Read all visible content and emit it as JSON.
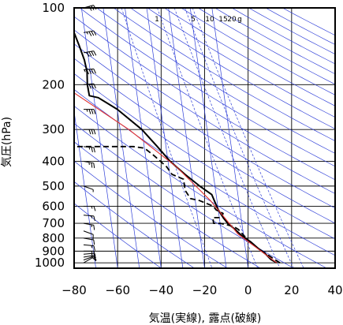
{
  "chart_data": {
    "type": "line",
    "title": "",
    "xlabel": "気温(実線), 露点(破線)",
    "ylabel": "気圧(hPa)",
    "xlim": [
      -80,
      40
    ],
    "ylim": [
      1050,
      100
    ],
    "y_scale": "log",
    "grid": true,
    "x_ticks": [
      -80,
      -60,
      -40,
      -20,
      0,
      20,
      40
    ],
    "x_tick_labels": [
      "−80",
      "−60",
      "−40",
      "−20",
      "0",
      "20",
      "40"
    ],
    "y_ticks": [
      100,
      200,
      300,
      400,
      500,
      600,
      700,
      800,
      900,
      1000
    ],
    "y_tick_labels": [
      "100",
      "200",
      "300",
      "400",
      "500",
      "600",
      "700",
      "800",
      "900",
      "1000"
    ],
    "mixing_ratio_labels": [
      "1",
      "5",
      "10",
      "15",
      "20",
      "g"
    ],
    "mixing_ratio_values": [
      1,
      5,
      10,
      15,
      20
    ],
    "dry_adiabat_thetas": [
      230,
      245,
      260,
      275,
      290,
      305,
      320,
      335,
      350,
      365,
      380,
      395,
      410,
      425,
      440,
      455,
      470,
      485,
      500,
      515,
      530,
      545,
      560,
      575,
      590
    ],
    "isotherm_temps": [
      -200,
      -190,
      -180,
      -170,
      -160,
      -150,
      -140,
      -130,
      -120,
      -110,
      -100,
      -90,
      -80,
      -70,
      -60,
      -50,
      -40,
      -30,
      -20,
      -10,
      0
    ],
    "series": [
      {
        "name": "",
        "style": "solid",
        "color": "#000000",
        "points": [
          [
            13.5,
            1000
          ],
          [
            11,
            970
          ],
          [
            9,
            925
          ],
          [
            6,
            880
          ],
          [
            3,
            830
          ],
          [
            -1,
            780
          ],
          [
            -3.5,
            740
          ],
          [
            -6.5,
            700
          ],
          [
            -8,
            670
          ],
          [
            -10,
            620
          ],
          [
            -11,
            580
          ],
          [
            -12,
            540
          ],
          [
            -17,
            500
          ],
          [
            -23,
            450
          ],
          [
            -29,
            400
          ],
          [
            -34,
            350
          ],
          [
            -40,
            300
          ],
          [
            -50,
            250
          ],
          [
            -58,
            225
          ],
          [
            -62,
            221
          ],
          [
            -62.2,
            200
          ],
          [
            -61.5,
            178
          ],
          [
            -62,
            160
          ],
          [
            -63.5,
            140
          ],
          [
            -65.5,
            120
          ],
          [
            -65,
            100
          ]
        ]
      },
      {
        "name": "",
        "style": "dashed",
        "color": "#000000",
        "points": [
          [
            15,
            1000
          ],
          [
            12,
            960
          ],
          [
            6,
            880
          ],
          [
            2,
            820
          ],
          [
            -2,
            740
          ],
          [
            -4,
            720
          ],
          [
            -10,
            700
          ],
          [
            -13,
            700
          ],
          [
            -13,
            665
          ],
          [
            -9,
            665
          ],
          [
            -8,
            640
          ],
          [
            -11,
            620
          ],
          [
            -12,
            600
          ],
          [
            -18,
            570
          ],
          [
            -22,
            560
          ],
          [
            -24,
            520
          ],
          [
            -24,
            470
          ],
          [
            -29,
            450
          ],
          [
            -31,
            420
          ],
          [
            -36,
            380
          ],
          [
            -40,
            355
          ],
          [
            -45,
            350
          ],
          [
            -80,
            350
          ]
        ]
      },
      {
        "name": "",
        "style": "solid",
        "color": "#e03030",
        "points": [
          [
            13.5,
            1000
          ],
          [
            -2.5,
            770
          ],
          [
            -13,
            570
          ],
          [
            -26.5,
            420
          ],
          [
            -46,
            300
          ],
          [
            -82,
            178
          ]
        ]
      }
    ],
    "wind_barbs": [
      {
        "p": 1000,
        "speed": 10,
        "dir": 60
      },
      {
        "p": 975,
        "speed": 10,
        "dir": 70
      },
      {
        "p": 950,
        "speed": 15,
        "dir": 80
      },
      {
        "p": 925,
        "speed": 15,
        "dir": 85
      },
      {
        "p": 900,
        "speed": 15,
        "dir": 90
      },
      {
        "p": 850,
        "speed": 15,
        "dir": 95
      },
      {
        "p": 800,
        "speed": 10,
        "dir": 100
      },
      {
        "p": 750,
        "speed": 10,
        "dir": 110
      },
      {
        "p": 700,
        "speed": 15,
        "dir": 100
      },
      {
        "p": 650,
        "speed": 15,
        "dir": 95
      },
      {
        "p": 600,
        "speed": 15,
        "dir": 90
      },
      {
        "p": 500,
        "speed": 5,
        "dir": 110
      },
      {
        "p": 400,
        "speed": 25,
        "dir": 100
      },
      {
        "p": 350,
        "speed": 25,
        "dir": 95
      },
      {
        "p": 300,
        "speed": 30,
        "dir": 90
      },
      {
        "p": 250,
        "speed": 35,
        "dir": 90
      },
      {
        "p": 200,
        "speed": 40,
        "dir": 85
      },
      {
        "p": 175,
        "speed": 45,
        "dir": 85
      },
      {
        "p": 150,
        "speed": 40,
        "dir": 80
      },
      {
        "p": 125,
        "speed": 35,
        "dir": 80
      },
      {
        "p": 100,
        "speed": 30,
        "dir": 75
      }
    ]
  }
}
